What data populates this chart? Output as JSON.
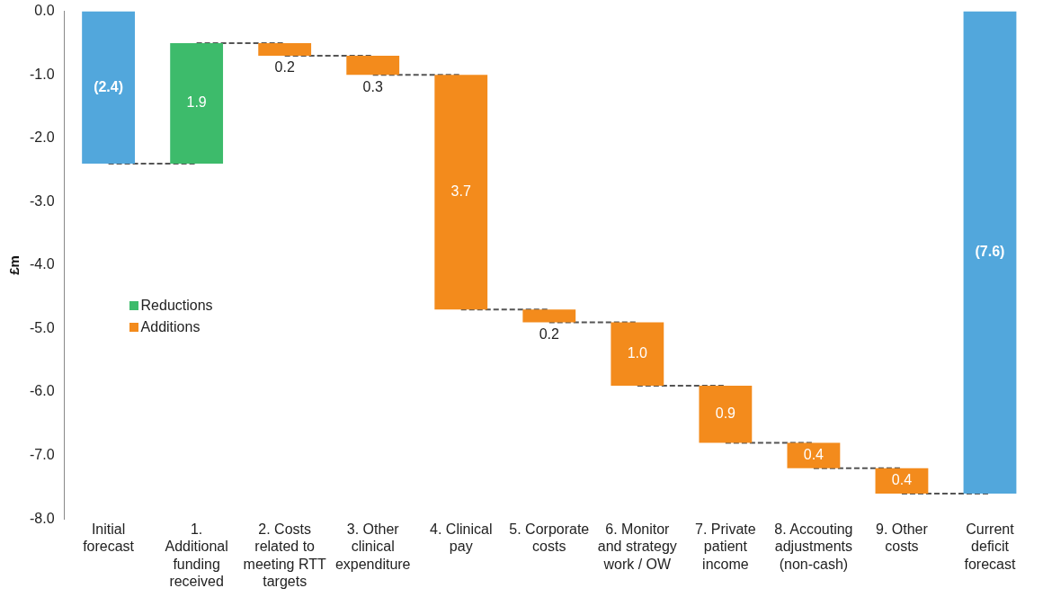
{
  "chart_data": {
    "type": "bar",
    "ylabel": "£m",
    "categories": [
      "Initial forecast",
      "1. Additional funding received",
      "2. Costs related to meeting RTT targets",
      "3. Other clinical expenditure",
      "4. Clinical pay",
      "5. Corporate costs",
      "6. Monitor and strategy work / OW",
      "7. Private patient income",
      "8. Accouting adjustments (non-cash)",
      "9. Other costs",
      "Current deficit forecast"
    ],
    "series": [
      {
        "color": "#52a7dc",
        "values": [
          -2.4,
          null,
          null,
          null,
          null,
          null,
          null,
          null,
          null,
          null,
          -7.6
        ],
        "base": [
          0,
          null,
          null,
          null,
          null,
          null,
          null,
          null,
          null,
          null,
          0
        ],
        "value_labels": [
          "(2.4)",
          null,
          null,
          null,
          null,
          null,
          null,
          null,
          null,
          null,
          "(7.6)"
        ]
      },
      {
        "name": "Reductions",
        "color": "#3dbb6b",
        "values": [
          null,
          1.9,
          null,
          null,
          null,
          null,
          null,
          null,
          null,
          null,
          null
        ],
        "base": [
          null,
          -2.4,
          null,
          null,
          null,
          null,
          null,
          null,
          null,
          null,
          null
        ],
        "value_labels": [
          null,
          "1.9",
          null,
          null,
          null,
          null,
          null,
          null,
          null,
          null,
          null
        ]
      },
      {
        "name": "Additions",
        "color": "#f38b1c",
        "values": [
          null,
          null,
          -0.2,
          -0.3,
          -3.7,
          -0.2,
          -1.0,
          -0.9,
          -0.4,
          -0.4,
          null
        ],
        "base": [
          null,
          null,
          -0.5,
          -0.7,
          -1.0,
          -4.7,
          -4.9,
          -5.9,
          -6.8,
          -7.2,
          null
        ],
        "value_labels": [
          null,
          null,
          "0.2",
          "0.3",
          "3.7",
          "0.2",
          "1.0",
          "0.9",
          "0.4",
          "0.4",
          null
        ]
      },
      {
        "type": "line",
        "color": "#555555",
        "line_style": "dashed",
        "marker": "none",
        "values": [
          -2.4,
          -2.4,
          null,
          null,
          null,
          null,
          null,
          null,
          null,
          null,
          null
        ]
      },
      {
        "type": "line",
        "color": "#555555",
        "line_style": "dashed",
        "marker": "none",
        "values": [
          null,
          -0.5,
          -0.5,
          null,
          null,
          null,
          null,
          null,
          null,
          null,
          null
        ]
      },
      {
        "type": "line",
        "color": "#555555",
        "line_style": "dashed",
        "marker": "none",
        "values": [
          null,
          null,
          -0.7,
          -0.7,
          null,
          null,
          null,
          null,
          null,
          null,
          null
        ]
      },
      {
        "type": "line",
        "color": "#555555",
        "line_style": "dashed",
        "marker": "none",
        "values": [
          null,
          null,
          null,
          -1.0,
          -1.0,
          null,
          null,
          null,
          null,
          null,
          null
        ]
      },
      {
        "type": "line",
        "color": "#555555",
        "line_style": "dashed",
        "marker": "none",
        "values": [
          null,
          null,
          null,
          null,
          -4.7,
          -4.7,
          null,
          null,
          null,
          null,
          null
        ]
      },
      {
        "type": "line",
        "color": "#555555",
        "line_style": "dashed",
        "marker": "none",
        "values": [
          null,
          null,
          null,
          null,
          null,
          -4.9,
          -4.9,
          null,
          null,
          null,
          null
        ]
      },
      {
        "type": "line",
        "color": "#555555",
        "line_style": "dashed",
        "marker": "none",
        "values": [
          null,
          null,
          null,
          null,
          null,
          null,
          -5.9,
          -5.9,
          null,
          null,
          null
        ]
      },
      {
        "type": "line",
        "color": "#555555",
        "line_style": "dashed",
        "marker": "none",
        "values": [
          null,
          null,
          null,
          null,
          null,
          null,
          null,
          -6.8,
          -6.8,
          null,
          null
        ]
      },
      {
        "type": "line",
        "color": "#555555",
        "line_style": "dashed",
        "marker": "none",
        "values": [
          null,
          null,
          null,
          null,
          null,
          null,
          null,
          null,
          -7.2,
          -7.2,
          null
        ]
      },
      {
        "type": "line",
        "color": "#555555",
        "line_style": "dashed",
        "marker": "none",
        "values": [
          null,
          null,
          null,
          null,
          null,
          null,
          null,
          null,
          null,
          -7.6,
          -7.6
        ]
      }
    ],
    "ylim": [
      -8,
      0
    ],
    "yticks": [
      {
        "value": 0,
        "label": "0.0"
      },
      {
        "value": -1,
        "label": "-1.0"
      },
      {
        "value": -2,
        "label": "-2.0"
      },
      {
        "value": -3,
        "label": "-3.0"
      },
      {
        "value": -4,
        "label": "-4.0"
      },
      {
        "value": -5,
        "label": "-5.0"
      },
      {
        "value": -6,
        "label": "-6.0"
      },
      {
        "value": -7,
        "label": "-7.0"
      },
      {
        "value": -8,
        "label": "-8.0"
      }
    ],
    "grid": false,
    "legend": "center left"
  }
}
